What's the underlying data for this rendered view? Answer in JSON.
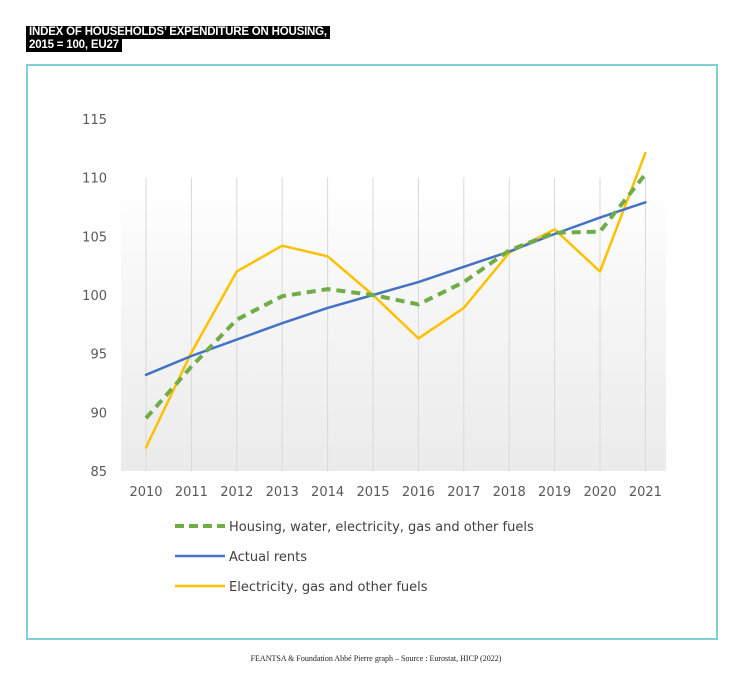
{
  "title_lines": [
    "INDEX OF HOUSEHOLDS’ EXPENDITURE ON HOUSING,",
    "2015 = 100, EU27"
  ],
  "footer": "FEANTSA & Foundation Abbé Pierre graph – Source : Eurostat, HICP (2022)",
  "colors": {
    "frame": "#7fcfd4",
    "grid": "#d9d9d9"
  },
  "chart_data": {
    "type": "line",
    "title": "INDEX OF HOUSEHOLDS’ EXPENDITURE ON HOUSING, 2015 = 100, EU27",
    "categories": [
      "2010",
      "2011",
      "2012",
      "2013",
      "2014",
      "2015",
      "2016",
      "2017",
      "2018",
      "2019",
      "2020",
      "2021"
    ],
    "ylim": [
      85,
      115
    ],
    "yticks": [
      85,
      90,
      95,
      100,
      105,
      110,
      115
    ],
    "grid": "vertical",
    "legend_position": "bottom",
    "series": [
      {
        "name": "Housing, water, electricity, gas and other fuels",
        "color": "#70ad47",
        "style": "dashed",
        "values": [
          89.5,
          93.9,
          97.9,
          99.9,
          100.5,
          100.0,
          99.2,
          101.1,
          103.8,
          105.3,
          105.4,
          110.3
        ]
      },
      {
        "name": "Actual rents",
        "color": "#4472c4",
        "style": "solid",
        "values": [
          93.2,
          94.8,
          96.2,
          97.6,
          98.9,
          100.0,
          101.1,
          102.4,
          103.7,
          105.2,
          106.6,
          107.9
        ]
      },
      {
        "name": "Electricity, gas and other fuels",
        "color": "#ffc000",
        "style": "solid",
        "values": [
          87.0,
          95.1,
          102.0,
          104.2,
          103.3,
          100.0,
          96.3,
          98.9,
          103.6,
          105.6,
          102.0,
          112.1
        ]
      }
    ]
  }
}
